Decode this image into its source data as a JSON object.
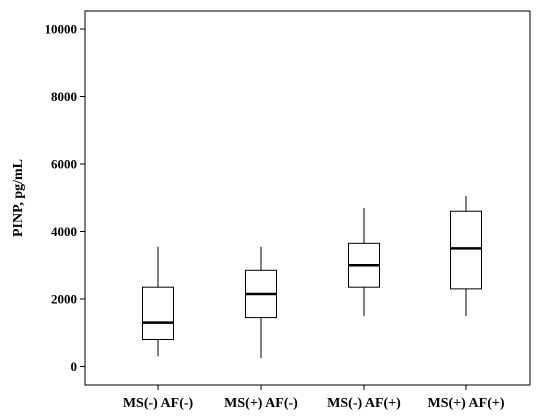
{
  "chart_data": {
    "type": "box",
    "title": "",
    "xlabel": "",
    "ylabel": "PINP, pg/mL",
    "ylim": [
      -500,
      10500
    ],
    "yticks": [
      0,
      2000,
      4000,
      6000,
      8000,
      10000
    ],
    "ytick_labels": [
      "0",
      "2000",
      "4000",
      "6000",
      "8000",
      "10000"
    ],
    "grid": false,
    "categories": [
      "MS(-) AF(-)",
      "MS(+) AF(-)",
      "MS(-) AF(+)",
      "MS(+) AF(+)"
    ],
    "boxes": [
      {
        "min": 300,
        "q1": 800,
        "median": 1300,
        "q3": 2350,
        "max": 3550
      },
      {
        "min": 250,
        "q1": 1450,
        "median": 2150,
        "q3": 2850,
        "max": 3550
      },
      {
        "min": 1500,
        "q1": 2350,
        "median": 3000,
        "q3": 3650,
        "max": 4700
      },
      {
        "min": 1500,
        "q1": 2300,
        "median": 3500,
        "q3": 4600,
        "max": 5050
      }
    ]
  }
}
